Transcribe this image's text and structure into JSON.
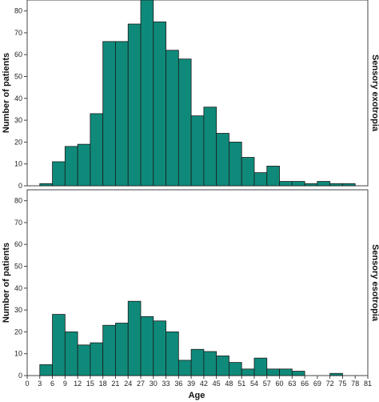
{
  "chart_data": {
    "type": "bar",
    "xlabel": "Age",
    "ylabel": "Number of patients",
    "xlim": [
      0,
      81
    ],
    "x_ticks": [
      0,
      3,
      6,
      9,
      12,
      15,
      18,
      21,
      24,
      27,
      30,
      33,
      36,
      39,
      42,
      45,
      48,
      51,
      54,
      57,
      60,
      63,
      66,
      69,
      72,
      75,
      78,
      81
    ],
    "bin_width": 3,
    "bin_starts": [
      3,
      6,
      9,
      12,
      15,
      18,
      21,
      24,
      27,
      30,
      33,
      36,
      39,
      42,
      45,
      48,
      51,
      54,
      57,
      60,
      63,
      66,
      69,
      72,
      75
    ],
    "bar_color": "#0f8a7a",
    "grid": false,
    "panels": [
      {
        "name": "Sensory exotropia",
        "ylim": [
          0,
          85
        ],
        "y_ticks": [
          0,
          10,
          20,
          30,
          40,
          50,
          60,
          70,
          80
        ],
        "values": [
          1,
          11,
          18,
          19,
          33,
          66,
          66,
          74,
          85,
          75,
          62,
          58,
          32,
          36,
          24,
          20,
          13,
          6,
          9,
          2,
          2,
          1,
          2,
          1,
          1
        ]
      },
      {
        "name": "Sensory esotropia",
        "ylim": [
          0,
          85
        ],
        "y_ticks": [
          0,
          10,
          20,
          30,
          40,
          50,
          60,
          70,
          80
        ],
        "values": [
          5,
          28,
          20,
          14,
          15,
          23,
          24,
          34,
          27,
          25,
          20,
          7,
          12,
          11,
          9,
          6,
          3,
          8,
          3,
          3,
          2,
          0,
          0,
          1,
          0
        ]
      }
    ]
  }
}
